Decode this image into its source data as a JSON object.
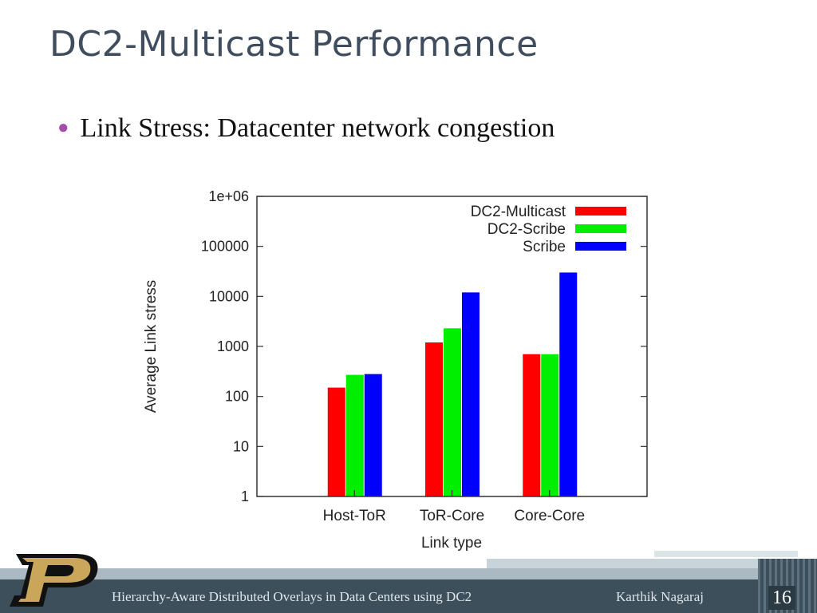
{
  "slide": {
    "title": "DC2-Multicast Performance",
    "bullet": "Link Stress: Datacenter network congestion"
  },
  "footer": {
    "presentation_title": "Hierarchy-Aware Distributed Overlays in Data Centers using DC2",
    "author": "Karthik Nagaraj",
    "slide_number": "16"
  },
  "logo": {
    "icon": "purdue-p-logo",
    "colors": {
      "gold": "#c9a65a",
      "black": "#111111"
    }
  },
  "chart_data": {
    "type": "bar",
    "title": "",
    "xlabel": "Link type",
    "ylabel": "Average Link stress",
    "yscale": "log",
    "ylim": [
      1,
      1000000
    ],
    "yticks": [
      {
        "value": 1,
        "label": "1"
      },
      {
        "value": 10,
        "label": "10"
      },
      {
        "value": 100,
        "label": "100"
      },
      {
        "value": 1000,
        "label": "1000"
      },
      {
        "value": 10000,
        "label": "10000"
      },
      {
        "value": 100000,
        "label": "100000"
      },
      {
        "value": 1000000,
        "label": "1e+06"
      }
    ],
    "categories": [
      "Host-ToR",
      "ToR-Core",
      "Core-Core"
    ],
    "series": [
      {
        "name": "DC2-Multicast",
        "color": "#ff0000",
        "values": [
          150,
          1200,
          700
        ]
      },
      {
        "name": "DC2-Scribe",
        "color": "#00ee00",
        "values": [
          270,
          2300,
          700
        ]
      },
      {
        "name": "Scribe",
        "color": "#0000ff",
        "values": [
          280,
          12000,
          30000
        ]
      }
    ],
    "legend_position": "top-right",
    "grid": false
  }
}
